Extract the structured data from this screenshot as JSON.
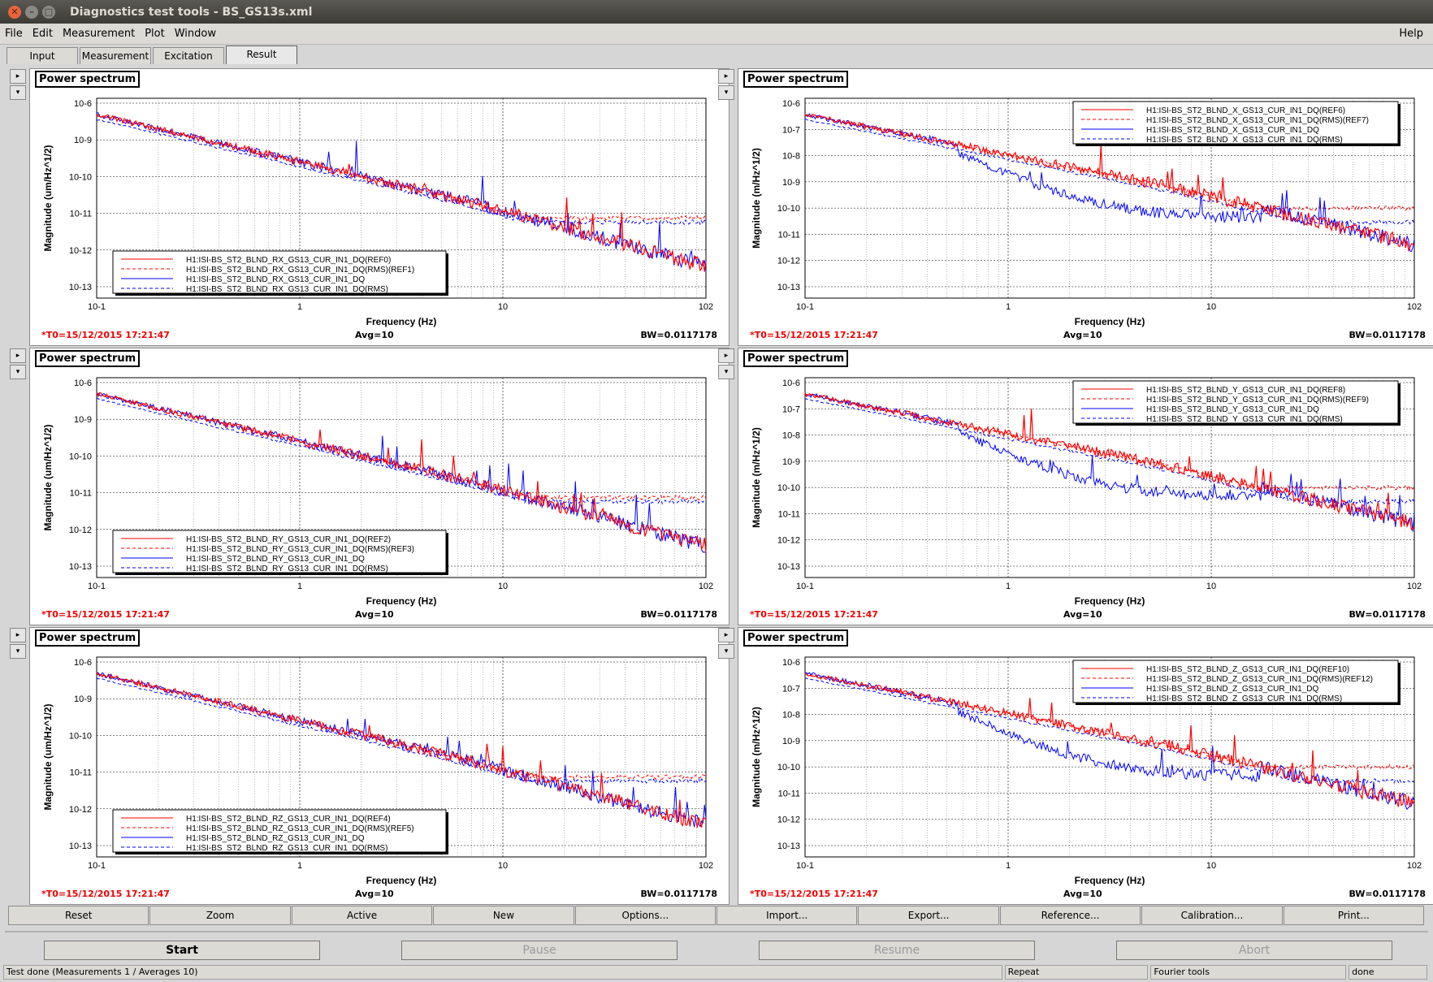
{
  "window": {
    "title": "Diagnostics test tools - BS_GS13s.xml"
  },
  "menubar": {
    "items": [
      "File",
      "Edit",
      "Measurement",
      "Plot",
      "Window"
    ],
    "help": "Help"
  },
  "tabs": [
    {
      "label": "Input",
      "active": false
    },
    {
      "label": "Measurement",
      "active": false
    },
    {
      "label": "Excitation",
      "active": false
    },
    {
      "label": "Result",
      "active": true
    }
  ],
  "panel_buttons": {
    "up": "▸",
    "down": "▾"
  },
  "panels": [
    {
      "title": "Power spectrum",
      "ylabel": "Magnitude (um/Hz^1/2)",
      "xlabel": "Frequency (Hz)",
      "legend_position": "bottom-left",
      "legend": [
        "H1:ISI-BS_ST2_BLND_RX_GS13_CUR_IN1_DQ(REF0)",
        "H1:ISI-BS_ST2_BLND_RX_GS13_CUR_IN1_DQ(RMS)(REF1)",
        "H1:ISI-BS_ST2_BLND_RX_GS13_CUR_IN1_DQ",
        "H1:ISI-BS_ST2_BLND_RX_GS13_CUR_IN1_DQ(RMS)"
      ],
      "yticks": [
        "10-6",
        "10-9",
        "10-10",
        "10-11",
        "10-12",
        "10-13"
      ],
      "t0": "*T0=15/12/2015 17:21:47",
      "avg": "Avg=10",
      "bw": "BW=0.0117178"
    },
    {
      "title": "Power spectrum",
      "ylabel": "Magnitude (m/Hz^1/2)",
      "xlabel": "Frequency (Hz)",
      "legend_position": "top-right",
      "legend": [
        "H1:ISI-BS_ST2_BLND_X_GS13_CUR_IN1_DQ(REF6)",
        "H1:ISI-BS_ST2_BLND_X_GS13_CUR_IN1_DQ(RMS)(REF7)",
        "H1:ISI-BS_ST2_BLND_X_GS13_CUR_IN1_DQ",
        "H1:ISI-BS_ST2_BLND_X_GS13_CUR_IN1_DQ(RMS)"
      ],
      "yticks": [
        "10-6",
        "10-7",
        "10-8",
        "10-9",
        "10-10",
        "10-11",
        "10-12",
        "10-13"
      ],
      "t0": "*T0=15/12/2015 17:21:47",
      "avg": "Avg=10",
      "bw": "BW=0.0117178"
    },
    {
      "title": "Power spectrum",
      "ylabel": "Magnitude (um/Hz^1/2)",
      "xlabel": "Frequency (Hz)",
      "legend_position": "bottom-left",
      "legend": [
        "H1:ISI-BS_ST2_BLND_RY_GS13_CUR_IN1_DQ(REF2)",
        "H1:ISI-BS_ST2_BLND_RY_GS13_CUR_IN1_DQ(RMS)(REF3)",
        "H1:ISI-BS_ST2_BLND_RY_GS13_CUR_IN1_DQ",
        "H1:ISI-BS_ST2_BLND_RY_GS13_CUR_IN1_DQ(RMS)"
      ],
      "yticks": [
        "10-6",
        "10-9",
        "10-10",
        "10-11",
        "10-12",
        "10-13"
      ],
      "t0": "*T0=15/12/2015 17:21:47",
      "avg": "Avg=10",
      "bw": "BW=0.0117178"
    },
    {
      "title": "Power spectrum",
      "ylabel": "Magnitude (m/Hz^1/2)",
      "xlabel": "Frequency (Hz)",
      "legend_position": "top-right",
      "legend": [
        "H1:ISI-BS_ST2_BLND_Y_GS13_CUR_IN1_DQ(REF8)",
        "H1:ISI-BS_ST2_BLND_Y_GS13_CUR_IN1_DQ(RMS)(REF9)",
        "H1:ISI-BS_ST2_BLND_Y_GS13_CUR_IN1_DQ",
        "H1:ISI-BS_ST2_BLND_Y_GS13_CUR_IN1_DQ(RMS)"
      ],
      "yticks": [
        "10-6",
        "10-7",
        "10-8",
        "10-9",
        "10-10",
        "10-11",
        "10-12",
        "10-13"
      ],
      "t0": "*T0=15/12/2015 17:21:47",
      "avg": "Avg=10",
      "bw": "BW=0.0117178"
    },
    {
      "title": "Power spectrum",
      "ylabel": "Magnitude (um/Hz^1/2)",
      "xlabel": "Frequency (Hz)",
      "legend_position": "bottom-left",
      "legend": [
        "H1:ISI-BS_ST2_BLND_RZ_GS13_CUR_IN1_DQ(REF4)",
        "H1:ISI-BS_ST2_BLND_RZ_GS13_CUR_IN1_DQ(RMS)(REF5)",
        "H1:ISI-BS_ST2_BLND_RZ_GS13_CUR_IN1_DQ",
        "H1:ISI-BS_ST2_BLND_RZ_GS13_CUR_IN1_DQ(RMS)"
      ],
      "yticks": [
        "10-6",
        "10-9",
        "10-10",
        "10-11",
        "10-12",
        "10-13"
      ],
      "t0": "*T0=15/12/2015 17:21:47",
      "avg": "Avg=10",
      "bw": "BW=0.0117178"
    },
    {
      "title": "Power spectrum",
      "ylabel": "Magnitude (m/Hz^1/2)",
      "xlabel": "Frequency (Hz)",
      "legend_position": "top-right",
      "legend": [
        "H1:ISI-BS_ST2_BLND_Z_GS13_CUR_IN1_DQ(REF10)",
        "H1:ISI-BS_ST2_BLND_Z_GS13_CUR_IN1_DQ(RMS)(REF12)",
        "H1:ISI-BS_ST2_BLND_Z_GS13_CUR_IN1_DQ",
        "H1:ISI-BS_ST2_BLND_Z_GS13_CUR_IN1_DQ(RMS)"
      ],
      "yticks": [
        "10-6",
        "10-7",
        "10-8",
        "10-9",
        "10-10",
        "10-11",
        "10-12",
        "10-13"
      ],
      "t0": "*T0=15/12/2015 17:21:47",
      "avg": "Avg=10",
      "bw": "BW=0.0117178"
    }
  ],
  "chart_data": {
    "type": "line",
    "x_scale": "log",
    "y_scale": "log",
    "xlim": [
      0.1,
      100
    ],
    "xticks": [
      "10-1",
      "1",
      "10",
      "102"
    ],
    "grid": true,
    "series_colors": {
      "ref": "#ff0000",
      "live": "#0000ff"
    },
    "series_styles": [
      "solid",
      "dashed",
      "solid",
      "dashed"
    ]
  },
  "toolbar": {
    "buttons": [
      "Reset",
      "Zoom",
      "Active",
      "New",
      "Options...",
      "Import...",
      "Export...",
      "Reference...",
      "Calibration...",
      "Print..."
    ]
  },
  "controls": {
    "start": "Start",
    "pause": "Pause",
    "resume": "Resume",
    "abort": "Abort"
  },
  "status": {
    "message": "Test done (Measurements 1 / Averages 10)",
    "repeat": "Repeat",
    "fourier": "Fourier tools",
    "state": "done"
  }
}
